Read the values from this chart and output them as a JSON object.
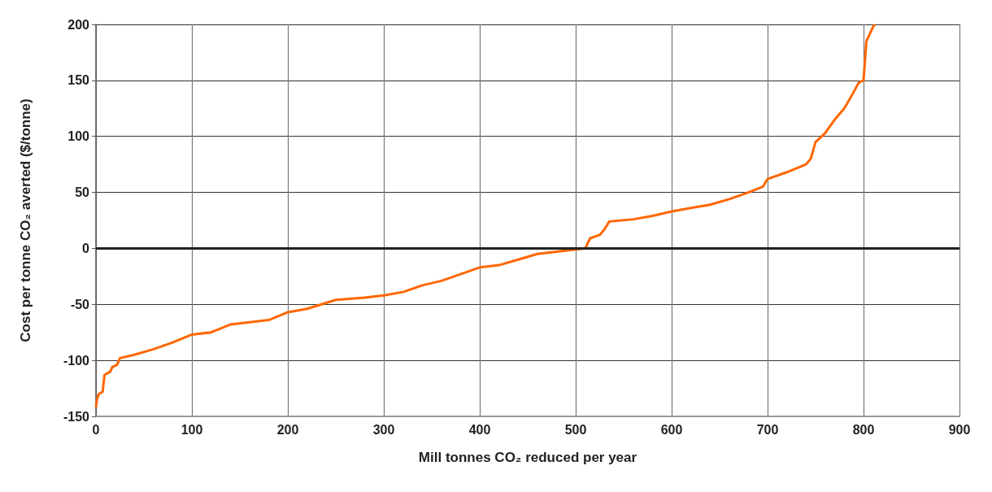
{
  "chart_data": {
    "type": "line",
    "xlabel": "Mill tonnes CO₂ reduced per year",
    "ylabel": "Cost per tonne CO₂ averted ($/tonne)",
    "xlim": [
      0,
      900
    ],
    "xticks": [
      0,
      100,
      200,
      300,
      400,
      500,
      600,
      700,
      800,
      900
    ],
    "ylim": [
      -150,
      200
    ],
    "yticks": [
      -150,
      -100,
      -50,
      0,
      50,
      100,
      150,
      200
    ],
    "grid": true,
    "marker": "none",
    "line_style": "solid",
    "ref_lines": [
      {
        "axis": "y",
        "value": 0,
        "color": "#222222"
      }
    ],
    "series": [
      {
        "color": "#ff6600",
        "x": [
          0,
          1,
          3,
          7,
          8,
          9,
          15,
          17,
          22,
          25,
          40,
          60,
          80,
          100,
          120,
          140,
          160,
          180,
          200,
          220,
          250,
          280,
          300,
          320,
          340,
          360,
          380,
          400,
          420,
          440,
          460,
          480,
          500,
          510,
          515,
          525,
          530,
          535,
          560,
          580,
          600,
          620,
          640,
          660,
          680,
          695,
          700,
          720,
          740,
          745,
          750,
          760,
          770,
          780,
          790,
          795,
          800,
          803,
          810,
          812
        ],
        "values": [
          -142,
          -135,
          -130,
          -128,
          -120,
          -113,
          -110,
          -106,
          -104,
          -98,
          -95,
          -90,
          -84,
          -77,
          -75,
          -68,
          -66,
          -64,
          -57,
          -54,
          -46,
          -44,
          -42,
          -39,
          -33,
          -29,
          -23,
          -17,
          -15,
          -10,
          -5,
          -3,
          -1,
          0,
          9,
          12,
          17,
          24,
          26,
          29,
          33,
          36,
          39,
          44,
          50,
          55,
          62,
          68,
          75,
          80,
          95,
          103,
          115,
          125,
          140,
          148,
          150,
          185,
          198,
          200
        ]
      }
    ]
  }
}
